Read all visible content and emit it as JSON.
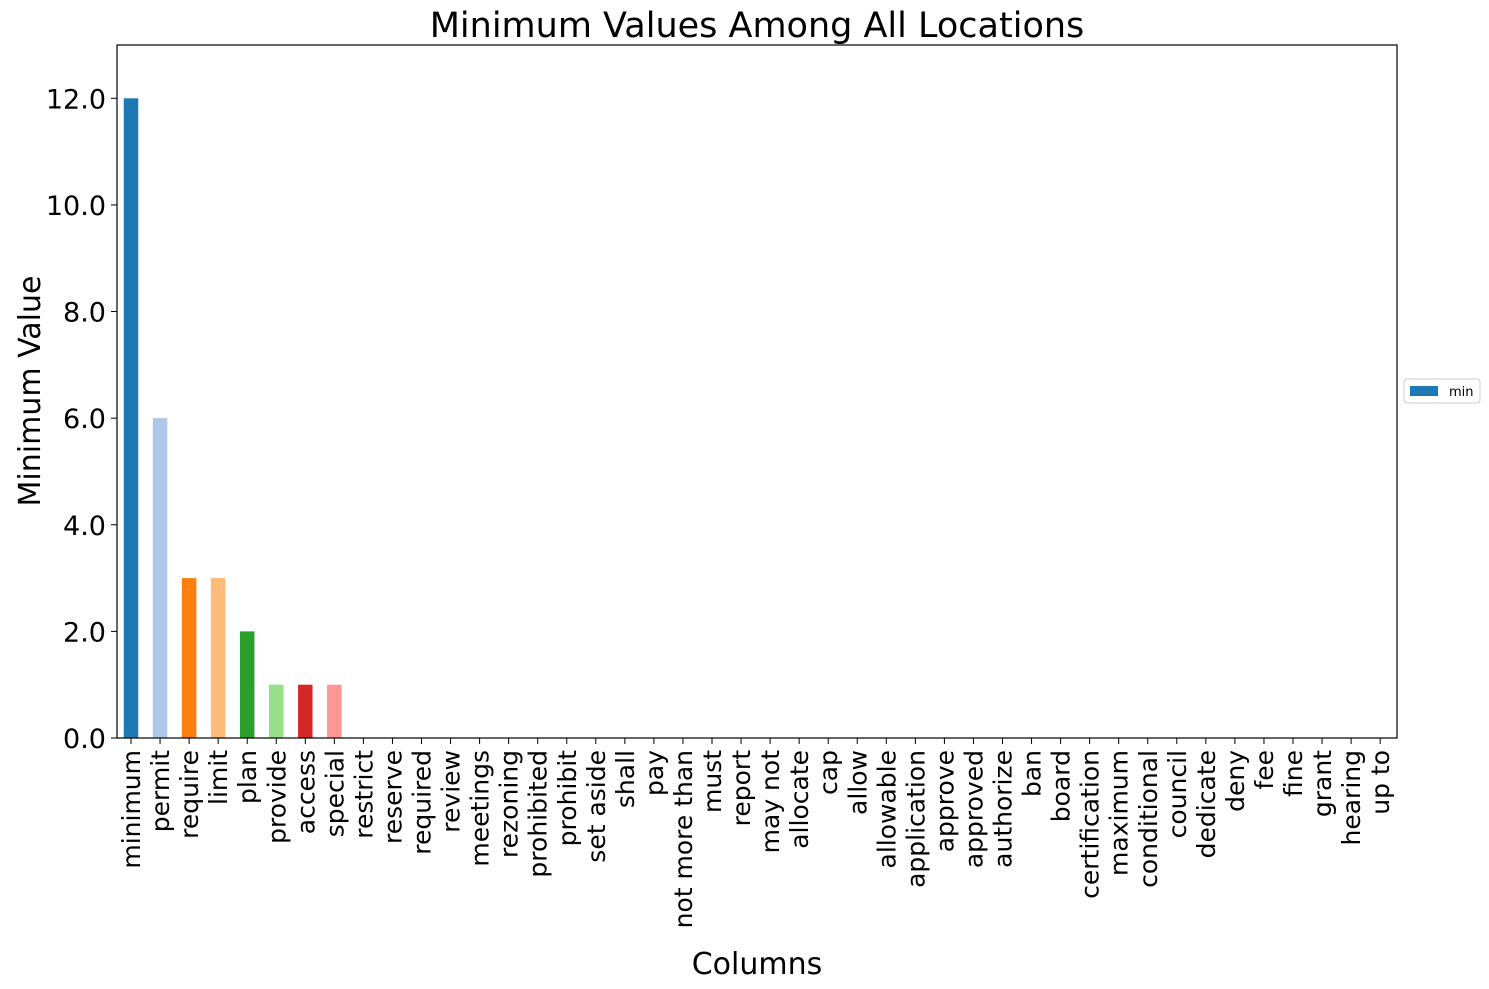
{
  "chart_data": {
    "type": "bar",
    "title": "Minimum Values Among All Locations",
    "xlabel": "Columns",
    "ylabel": "Minimum Value",
    "ylim": [
      0,
      13
    ],
    "yticks": [
      "0.0",
      "2.0",
      "4.0",
      "6.0",
      "8.0",
      "10.0",
      "12.0"
    ],
    "grid": false,
    "legend": {
      "placement": "right-center",
      "entries": [
        "min"
      ]
    },
    "categories": [
      "minimum",
      "permit",
      "require",
      "limit",
      "plan",
      "provide",
      "access",
      "special",
      "restrict",
      "reserve",
      "required",
      "review",
      "meetings",
      "rezoning",
      "prohibited",
      "prohibit",
      "set aside",
      "shall",
      "pay",
      "not more than",
      "must",
      "report",
      "may not",
      "allocate",
      "cap",
      "allow",
      "allowable",
      "application",
      "approve",
      "approved",
      "authorize",
      "ban",
      "board",
      "certification",
      "maximum",
      "conditional",
      "council",
      "dedicate",
      "deny",
      "fee",
      "fine",
      "grant",
      "hearing",
      "up to"
    ],
    "series": [
      {
        "name": "min",
        "values": [
          12,
          6,
          3,
          3,
          2,
          1,
          1,
          1,
          0,
          0,
          0,
          0,
          0,
          0,
          0,
          0,
          0,
          0,
          0,
          0,
          0,
          0,
          0,
          0,
          0,
          0,
          0,
          0,
          0,
          0,
          0,
          0,
          0,
          0,
          0,
          0,
          0,
          0,
          0,
          0,
          0,
          0,
          0,
          0
        ]
      }
    ],
    "bar_colors": [
      "#1f77b4",
      "#aec7e8",
      "#ff7f0e",
      "#ffbb78",
      "#2ca02c",
      "#98df8a",
      "#d62728",
      "#ff9896",
      "#9467bd",
      "#c5b0d5",
      "#8c564b",
      "#c49c94",
      "#e377c2",
      "#f7b6d2",
      "#7f7f7f",
      "#c7c7c7",
      "#bcbd22",
      "#dbdb8d",
      "#17becf",
      "#9edae5",
      "#1f77b4",
      "#aec7e8",
      "#ff7f0e",
      "#ffbb78",
      "#2ca02c",
      "#98df8a",
      "#d62728",
      "#ff9896",
      "#9467bd",
      "#c5b0d5",
      "#8c564b",
      "#c49c94",
      "#e377c2",
      "#f7b6d2",
      "#7f7f7f",
      "#c7c7c7",
      "#bcbd22",
      "#dbdb8d",
      "#17becf",
      "#9edae5",
      "#1f77b4",
      "#aec7e8",
      "#ff7f0e",
      "#ffbb78"
    ],
    "legend_color": "#1f77b4"
  }
}
